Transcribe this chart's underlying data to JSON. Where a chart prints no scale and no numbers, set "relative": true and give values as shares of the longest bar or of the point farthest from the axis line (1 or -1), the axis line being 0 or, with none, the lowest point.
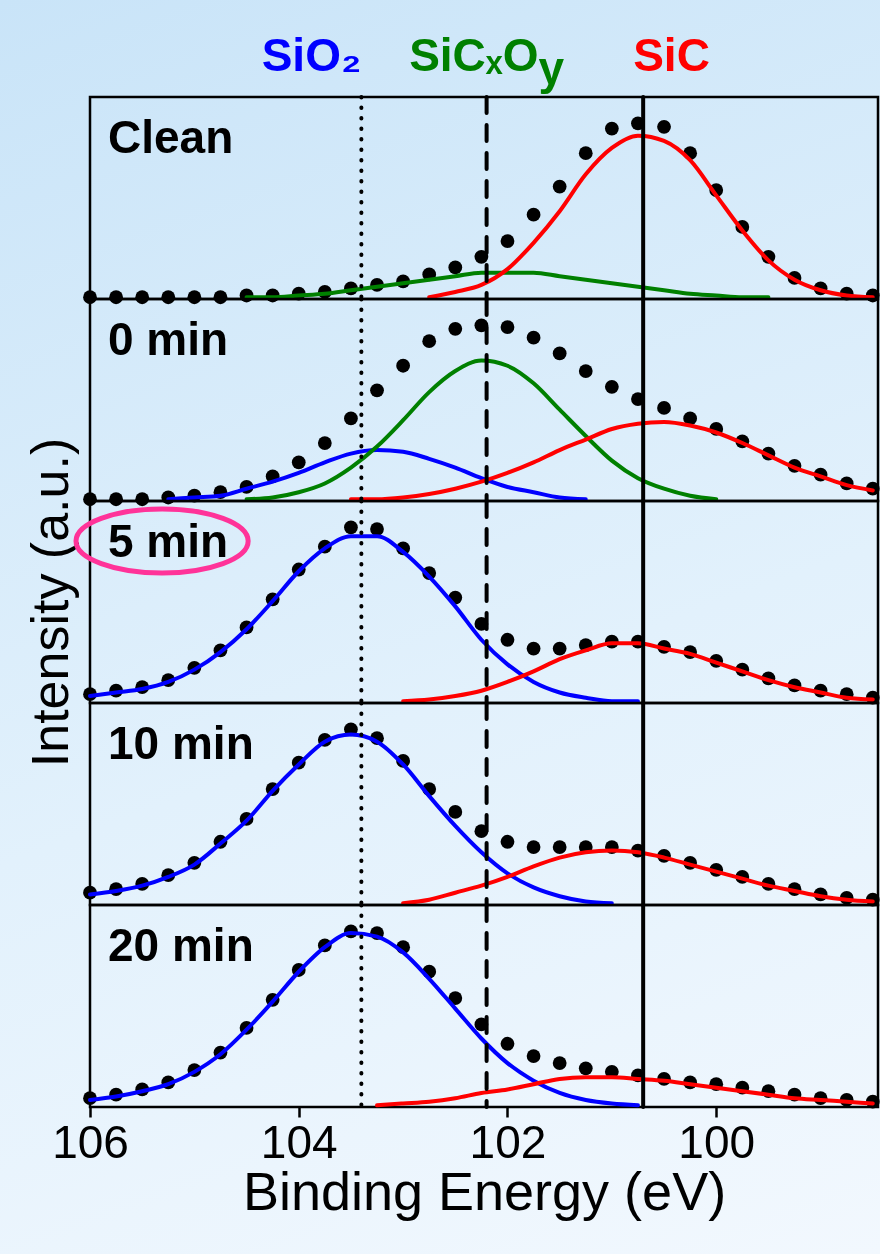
{
  "chart_data": [
    {
      "type": "line",
      "relative": true,
      "tick_labels": false,
      "xlim": [
        106,
        98.45
      ],
      "xticks": [
        106,
        104,
        102,
        100
      ],
      "annotations": [
        "Clean"
      ],
      "x": [
        106,
        105.75,
        105.5,
        105.25,
        105,
        104.75,
        104.5,
        104.25,
        104,
        103.75,
        103.5,
        103.25,
        103,
        102.75,
        102.5,
        102.25,
        102,
        101.75,
        101.5,
        101.25,
        101,
        100.75,
        100.5,
        100.25,
        100,
        99.75,
        99.5,
        99.25,
        99,
        98.75,
        98.5
      ],
      "ref_lines": [
        {
          "axis": "x",
          "value": 103.4,
          "line_style": "dotted",
          "label": "SiO₂"
        },
        {
          "axis": "x",
          "value": 102.2,
          "line_style": "dashed",
          "label": "SiCₓO$_{y}$"
        },
        {
          "axis": "x",
          "value": 100.7,
          "line_style": "solid",
          "label": "SiC"
        }
      ],
      "series": [
        {
          "type": "scatter",
          "marker": "circle",
          "color": "#000000",
          "values": [
            0.01,
            0.01,
            0.01,
            0.01,
            0.01,
            0.01,
            0.02,
            0.02,
            0.03,
            0.04,
            0.06,
            0.08,
            0.1,
            0.14,
            0.18,
            0.24,
            0.33,
            0.48,
            0.64,
            0.83,
            0.97,
            1,
            0.98,
            0.83,
            0.62,
            0.41,
            0.24,
            0.12,
            0.06,
            0.03,
            0.02
          ]
        },
        {
          "color": "#008000",
          "values": [
            null,
            null,
            null,
            null,
            null,
            null,
            0.01,
            0.01,
            0.02,
            0.03,
            0.05,
            0.07,
            0.09,
            0.11,
            0.13,
            0.15,
            0.15,
            0.15,
            0.13,
            0.11,
            0.09,
            0.07,
            0.05,
            0.03,
            0.02,
            0.01,
            0.01,
            null,
            null,
            null,
            null
          ]
        },
        {
          "color": "#ff0000",
          "values": [
            null,
            null,
            null,
            null,
            null,
            null,
            null,
            null,
            null,
            null,
            null,
            null,
            null,
            0.01,
            0.04,
            0.08,
            0.17,
            0.32,
            0.5,
            0.71,
            0.86,
            0.93,
            0.9,
            0.79,
            0.59,
            0.39,
            0.22,
            0.11,
            0.05,
            0.02,
            0.01
          ]
        }
      ]
    },
    {
      "type": "line",
      "relative": true,
      "tick_labels": false,
      "xlim": [
        106,
        98.45
      ],
      "xticks": [
        106,
        104,
        102,
        100
      ],
      "annotations": [
        "0 min"
      ],
      "x": [
        106,
        105.75,
        105.5,
        105.25,
        105,
        104.75,
        104.5,
        104.25,
        104,
        103.75,
        103.5,
        103.25,
        103,
        102.75,
        102.5,
        102.25,
        102,
        101.75,
        101.5,
        101.25,
        101,
        100.75,
        100.5,
        100.25,
        100,
        99.75,
        99.5,
        99.25,
        99,
        98.75,
        98.5
      ],
      "ref_lines": [
        {
          "axis": "x",
          "value": 103.4,
          "line_style": "dotted"
        },
        {
          "axis": "x",
          "value": 102.2,
          "line_style": "dashed"
        },
        {
          "axis": "x",
          "value": 100.7,
          "line_style": "solid"
        }
      ],
      "series": [
        {
          "type": "scatter",
          "marker": "circle",
          "color": "#000000",
          "values": [
            0.01,
            0.01,
            0.01,
            0.02,
            0.03,
            0.05,
            0.08,
            0.14,
            0.22,
            0.33,
            0.47,
            0.63,
            0.77,
            0.91,
            0.98,
            1,
            0.99,
            0.93,
            0.84,
            0.74,
            0.65,
            0.58,
            0.53,
            0.47,
            0.41,
            0.34,
            0.27,
            0.2,
            0.15,
            0.1,
            0.07
          ]
        },
        {
          "color": "#0000ff",
          "values": [
            null,
            null,
            null,
            0.01,
            0.02,
            0.03,
            0.07,
            0.11,
            0.16,
            0.22,
            0.27,
            0.29,
            0.28,
            0.24,
            0.19,
            0.13,
            0.08,
            0.05,
            0.02,
            0.01,
            null,
            null,
            null,
            null,
            null,
            null,
            null,
            null,
            null,
            null,
            null
          ]
        },
        {
          "color": "#008000",
          "values": [
            null,
            null,
            null,
            null,
            null,
            null,
            0.01,
            0.02,
            0.05,
            0.1,
            0.19,
            0.31,
            0.46,
            0.62,
            0.74,
            0.8,
            0.77,
            0.67,
            0.52,
            0.37,
            0.23,
            0.13,
            0.07,
            0.03,
            0.01,
            null,
            null,
            null,
            null,
            null,
            null
          ]
        },
        {
          "color": "#ff0000",
          "values": [
            null,
            null,
            null,
            null,
            null,
            null,
            null,
            null,
            null,
            null,
            0.01,
            0.01,
            0.02,
            0.04,
            0.07,
            0.11,
            0.16,
            0.22,
            0.29,
            0.35,
            0.41,
            0.44,
            0.45,
            0.43,
            0.39,
            0.33,
            0.26,
            0.19,
            0.14,
            0.09,
            0.06
          ]
        }
      ]
    },
    {
      "type": "line",
      "relative": true,
      "tick_labels": false,
      "xlim": [
        106,
        98.45
      ],
      "xticks": [
        106,
        104,
        102,
        100
      ],
      "ylabel": "Intensity (a.u.)",
      "annotations": [
        "5 min"
      ],
      "x": [
        106,
        105.75,
        105.5,
        105.25,
        105,
        104.75,
        104.5,
        104.25,
        104,
        103.75,
        103.5,
        103.25,
        103,
        102.75,
        102.5,
        102.25,
        102,
        101.75,
        101.5,
        101.25,
        101,
        100.75,
        100.5,
        100.25,
        100,
        99.75,
        99.5,
        99.25,
        99,
        98.75,
        98.5
      ],
      "ref_lines": [
        {
          "axis": "x",
          "value": 103.4,
          "line_style": "dotted"
        },
        {
          "axis": "x",
          "value": 102.2,
          "line_style": "dashed"
        },
        {
          "axis": "x",
          "value": 100.7,
          "line_style": "solid"
        }
      ],
      "series": [
        {
          "type": "scatter",
          "marker": "circle",
          "color": "#000000",
          "values": [
            0.05,
            0.07,
            0.09,
            0.13,
            0.2,
            0.3,
            0.43,
            0.59,
            0.76,
            0.89,
            1,
            0.99,
            0.88,
            0.74,
            0.6,
            0.45,
            0.36,
            0.31,
            0.31,
            0.33,
            0.35,
            0.35,
            0.32,
            0.29,
            0.24,
            0.19,
            0.14,
            0.1,
            0.07,
            0.05,
            0.03
          ]
        },
        {
          "color": "#0000ff",
          "values": [
            0.04,
            0.06,
            0.08,
            0.12,
            0.19,
            0.29,
            0.42,
            0.58,
            0.75,
            0.88,
            0.95,
            0.95,
            0.86,
            0.72,
            0.55,
            0.36,
            0.22,
            0.12,
            0.06,
            0.03,
            0.01,
            0.01,
            null,
            null,
            null,
            null,
            null,
            null,
            null,
            null,
            null
          ]
        },
        {
          "color": "#ff0000",
          "values": [
            null,
            null,
            null,
            null,
            null,
            null,
            null,
            null,
            null,
            null,
            null,
            null,
            0.01,
            0.02,
            0.04,
            0.07,
            0.12,
            0.18,
            0.25,
            0.3,
            0.34,
            0.34,
            0.31,
            0.28,
            0.23,
            0.18,
            0.13,
            0.09,
            0.06,
            0.03,
            0.02
          ]
        }
      ]
    },
    {
      "type": "line",
      "relative": true,
      "tick_labels": false,
      "xlim": [
        106,
        98.45
      ],
      "xticks": [
        106,
        104,
        102,
        100
      ],
      "annotations": [
        "10 min"
      ],
      "x": [
        106,
        105.75,
        105.5,
        105.25,
        105,
        104.75,
        104.5,
        104.25,
        104,
        103.75,
        103.5,
        103.25,
        103,
        102.75,
        102.5,
        102.25,
        102,
        101.75,
        101.5,
        101.25,
        101,
        100.75,
        100.5,
        100.25,
        100,
        99.75,
        99.5,
        99.25,
        99,
        98.75,
        98.5
      ],
      "ref_lines": [
        {
          "axis": "x",
          "value": 103.4,
          "line_style": "dotted"
        },
        {
          "axis": "x",
          "value": 102.2,
          "line_style": "dashed"
        },
        {
          "axis": "x",
          "value": 100.7,
          "line_style": "solid"
        }
      ],
      "series": [
        {
          "type": "scatter",
          "marker": "circle",
          "color": "#000000",
          "values": [
            0.07,
            0.09,
            0.12,
            0.17,
            0.24,
            0.36,
            0.49,
            0.66,
            0.81,
            0.94,
            1,
            0.95,
            0.82,
            0.66,
            0.53,
            0.42,
            0.36,
            0.33,
            0.33,
            0.33,
            0.33,
            0.31,
            0.28,
            0.24,
            0.2,
            0.16,
            0.12,
            0.09,
            0.06,
            0.04,
            0.03
          ]
        },
        {
          "color": "#0000ff",
          "values": [
            0.06,
            0.08,
            0.11,
            0.16,
            0.23,
            0.35,
            0.48,
            0.65,
            0.8,
            0.93,
            0.97,
            0.93,
            0.8,
            0.62,
            0.45,
            0.3,
            0.18,
            0.1,
            0.05,
            0.02,
            0.01,
            null,
            null,
            null,
            null,
            null,
            null,
            null,
            null,
            null,
            null
          ]
        },
        {
          "color": "#ff0000",
          "values": [
            null,
            null,
            null,
            null,
            null,
            null,
            null,
            null,
            null,
            null,
            null,
            null,
            0.01,
            0.03,
            0.07,
            0.11,
            0.16,
            0.22,
            0.27,
            0.3,
            0.31,
            0.3,
            0.27,
            0.23,
            0.19,
            0.15,
            0.11,
            0.08,
            0.05,
            0.03,
            0.02
          ]
        }
      ]
    },
    {
      "type": "line",
      "relative": true,
      "tick_labels": "x",
      "xlim": [
        106,
        98.45
      ],
      "xticks": [
        106,
        104,
        102,
        100
      ],
      "xlabel": "Binding Energy (eV)",
      "annotations": [
        "20 min"
      ],
      "x": [
        106,
        105.75,
        105.5,
        105.25,
        105,
        104.75,
        104.5,
        104.25,
        104,
        103.75,
        103.5,
        103.25,
        103,
        102.75,
        102.5,
        102.25,
        102,
        101.75,
        101.5,
        101.25,
        101,
        100.75,
        100.5,
        100.25,
        100,
        99.75,
        99.5,
        99.25,
        99,
        98.75,
        98.5
      ],
      "ref_lines": [
        {
          "axis": "x",
          "value": 103.4,
          "line_style": "dotted"
        },
        {
          "axis": "x",
          "value": 102.2,
          "line_style": "dashed"
        },
        {
          "axis": "x",
          "value": 100.7,
          "line_style": "solid"
        }
      ],
      "series": [
        {
          "type": "scatter",
          "marker": "circle",
          "color": "#000000",
          "values": [
            0.05,
            0.07,
            0.1,
            0.14,
            0.21,
            0.31,
            0.45,
            0.61,
            0.78,
            0.92,
            1,
            0.99,
            0.91,
            0.77,
            0.62,
            0.47,
            0.36,
            0.29,
            0.25,
            0.22,
            0.2,
            0.18,
            0.16,
            0.14,
            0.13,
            0.11,
            0.09,
            0.07,
            0.05,
            0.04,
            0.03
          ]
        },
        {
          "color": "#0000ff",
          "values": [
            0.04,
            0.06,
            0.09,
            0.13,
            0.2,
            0.3,
            0.44,
            0.6,
            0.77,
            0.91,
            0.99,
            0.97,
            0.88,
            0.73,
            0.56,
            0.39,
            0.25,
            0.15,
            0.08,
            0.04,
            0.02,
            0.01,
            null,
            null,
            null,
            null,
            null,
            null,
            null,
            null,
            null
          ]
        },
        {
          "color": "#ff0000",
          "values": [
            null,
            null,
            null,
            null,
            null,
            null,
            null,
            null,
            null,
            null,
            null,
            0.01,
            0.02,
            0.03,
            0.05,
            0.08,
            0.1,
            0.13,
            0.16,
            0.17,
            0.17,
            0.16,
            0.15,
            0.13,
            0.11,
            0.09,
            0.07,
            0.05,
            0.04,
            0.03,
            0.02
          ]
        }
      ]
    }
  ]
}
